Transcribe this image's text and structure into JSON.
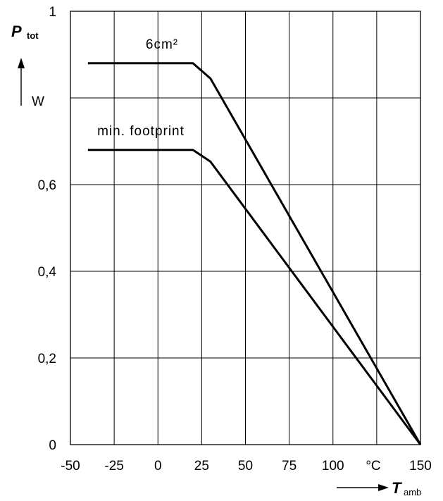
{
  "chart_data": {
    "type": "line",
    "title": "",
    "x_label": {
      "symbol": "T",
      "subscript": "amb",
      "unit": "°C"
    },
    "y_label": {
      "symbol": "P",
      "subscript": "tot",
      "unit": "W"
    },
    "xlim": [
      -50,
      150
    ],
    "ylim": [
      0,
      1
    ],
    "x_ticks": [
      -50,
      -25,
      0,
      25,
      50,
      75,
      100,
      150
    ],
    "x_tick_labels": [
      "-50",
      "-25",
      "0",
      "25",
      "50",
      "75",
      "100",
      "150"
    ],
    "y_ticks": [
      0,
      0.2,
      0.4,
      0.6,
      1
    ],
    "y_tick_labels": [
      "0",
      "0,2",
      "0,4",
      "0,6",
      "1"
    ],
    "x_grid": [
      -50,
      -25,
      0,
      25,
      50,
      75,
      100,
      125,
      150
    ],
    "y_grid": [
      0,
      0.2,
      0.4,
      0.6,
      0.8,
      1.0
    ],
    "grid": true,
    "series": [
      {
        "name": "6cm²",
        "x": [
          -40,
          20,
          30,
          150
        ],
        "y": [
          0.88,
          0.88,
          0.845,
          0
        ]
      },
      {
        "name": "min. footprint",
        "x": [
          -40,
          20,
          30,
          150
        ],
        "y": [
          0.68,
          0.68,
          0.653,
          0
        ]
      }
    ]
  }
}
